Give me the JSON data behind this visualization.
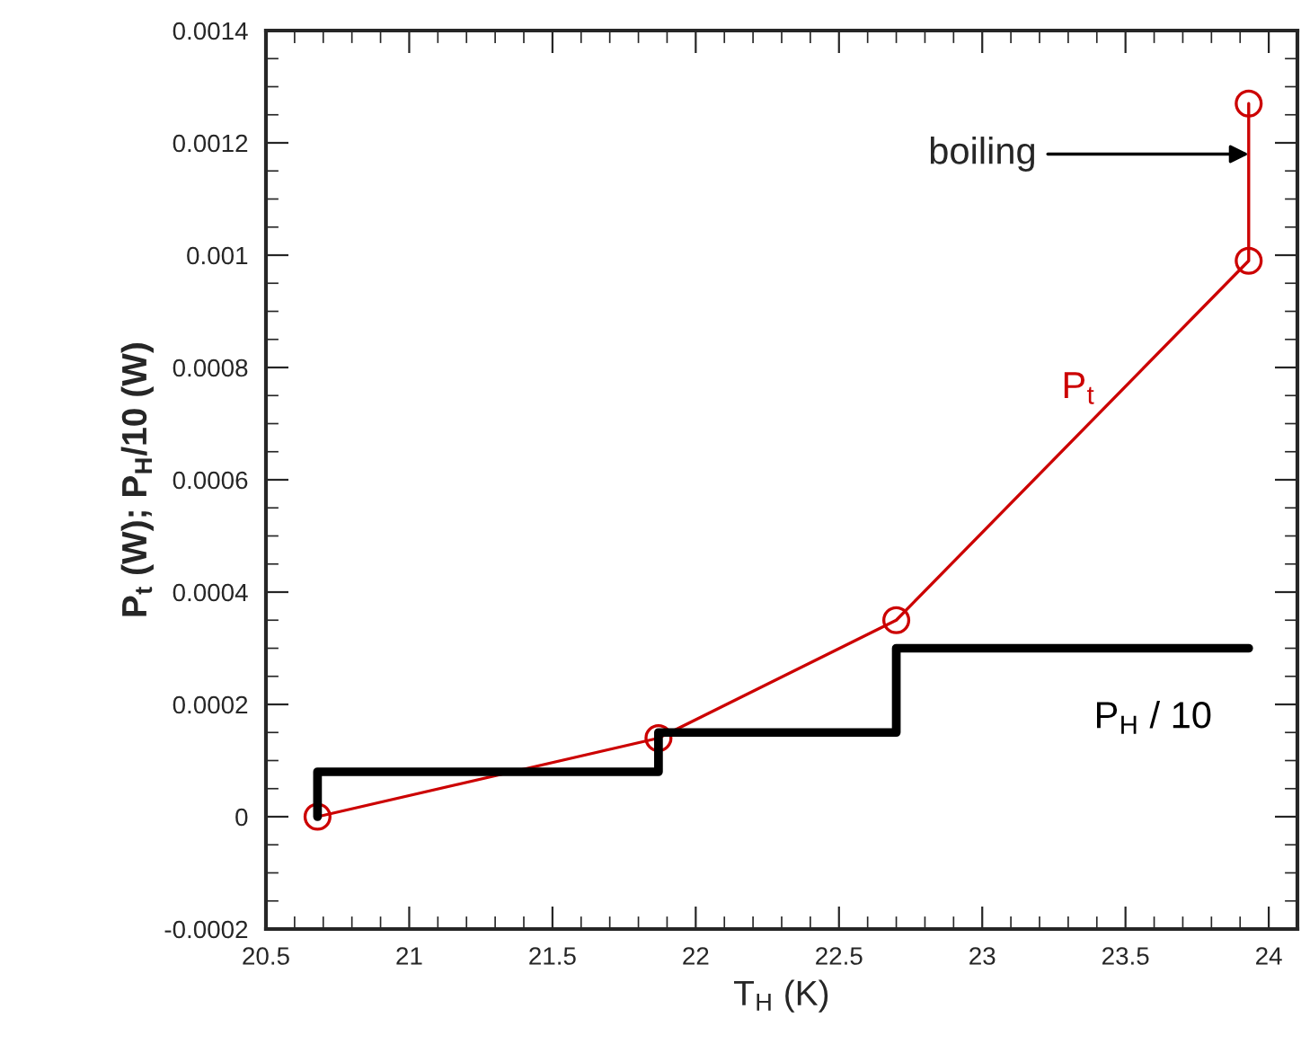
{
  "chart_data": {
    "type": "line",
    "xlabel": "T$_{H}$ (K)",
    "ylabel": "P$_{t}$ (W); P$_{H}$/10 (W)",
    "xlim": [
      20.5,
      24.1
    ],
    "xticks": [
      {
        "value": 20.5,
        "label": "20.5"
      },
      21,
      {
        "value": 21.5,
        "label": "21.5"
      },
      22,
      {
        "value": 22.5,
        "label": "22.5"
      },
      23,
      {
        "value": 23.5,
        "label": "23.5"
      },
      24
    ],
    "ylim": [
      -0.0002,
      0.0014
    ],
    "yticks": [
      -0.0002,
      0,
      0.0002,
      0.0004,
      0.0006,
      0.0008,
      0.001,
      0.0012,
      0.0014
    ],
    "grid": false,
    "legend": false,
    "series": [
      {
        "name": "P$_{t}$",
        "color": "#cc0000",
        "marker": "circle",
        "x": [
          20.68,
          21.87,
          22.7,
          23.93,
          23.93
        ],
        "values": [
          0,
          0.00014,
          0.00035,
          0.00099,
          0.00127
        ]
      },
      {
        "name": "P$_{H}$ / 10",
        "type": "step",
        "color": "#000000",
        "marker": "none",
        "x": [
          20.68,
          20.68,
          21.87,
          22.7,
          23.93
        ],
        "values": [
          0,
          8e-05,
          0.00015,
          0.0003,
          0.0003
        ]
      }
    ],
    "annotations": [
      {
        "text": "boiling",
        "x": 23.93,
        "y": 0.00118
      }
    ]
  }
}
